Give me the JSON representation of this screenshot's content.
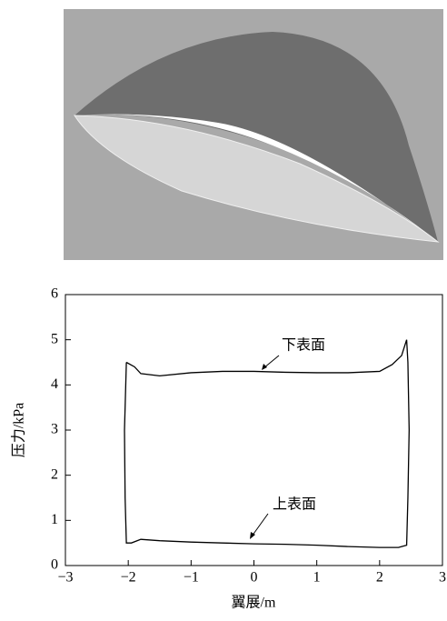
{
  "chart_data": {
    "type": "line",
    "xlabel": "翼展/m",
    "ylabel": "压力/kPa",
    "annotations": [
      "下表面",
      "上表面"
    ],
    "x": [
      -2.03,
      -1.9,
      -1.8,
      -1.5,
      -1,
      -0.5,
      0,
      0.5,
      1,
      1.5,
      2,
      2.2,
      2.35,
      2.43,
      2.45,
      2.47,
      2.45,
      2.43,
      2.3,
      2,
      1.5,
      1,
      0.5,
      0,
      -0.5,
      -1,
      -1.5,
      -1.8,
      -1.95,
      -2.03,
      -2.05,
      -2.06,
      -2.04,
      -2.03
    ],
    "values": [
      4.5,
      4.4,
      4.25,
      4.2,
      4.27,
      4.3,
      4.3,
      4.28,
      4.27,
      4.27,
      4.3,
      4.45,
      4.65,
      5.0,
      4.5,
      3,
      1.5,
      0.45,
      0.4,
      0.4,
      0.42,
      0.45,
      0.47,
      0.48,
      0.5,
      0.52,
      0.55,
      0.58,
      0.5,
      0.5,
      1.5,
      3,
      4.0,
      4.5
    ],
    "color": "#000000",
    "xlim": [
      -3,
      3
    ],
    "xticks": [
      {
        "value": -3,
        "label": "−3"
      },
      {
        "value": -2,
        "label": "−2"
      },
      {
        "value": -1,
        "label": "−1"
      },
      0,
      1,
      2,
      3
    ],
    "ylim": [
      0,
      6
    ],
    "yticks": [
      0,
      1,
      2,
      3,
      4,
      5,
      6
    ],
    "grid": false
  }
}
